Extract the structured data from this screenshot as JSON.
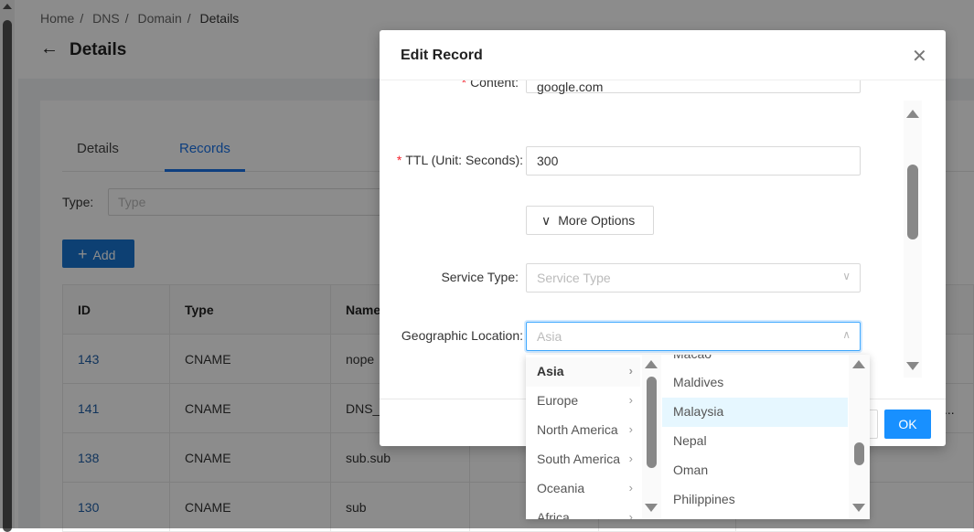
{
  "breadcrumb": [
    "Home",
    "DNS",
    "Domain",
    "Details"
  ],
  "page": {
    "title": "Details"
  },
  "tabs": [
    {
      "label": "Details"
    },
    {
      "label": "Records",
      "active": true
    }
  ],
  "filter": {
    "label": "Type:",
    "placeholder": "Type"
  },
  "add_label": "Add",
  "table": {
    "headers": [
      "ID",
      "Type",
      "Name"
    ],
    "rows": [
      {
        "id": "143",
        "type": "CNAME",
        "name": "nope"
      },
      {
        "id": "141",
        "type": "CNAME",
        "name": "DNS_("
      },
      {
        "id": "138",
        "type": "CNAME",
        "name": "sub.sub"
      },
      {
        "id": "130",
        "type": "CNAME",
        "name": "sub"
      }
    ],
    "overflow_text": "..."
  },
  "modal": {
    "title": "Edit Record",
    "content": {
      "label": "Content:",
      "value": "google.com"
    },
    "ttl": {
      "label": "TTL (Unit: Seconds):",
      "value": "300"
    },
    "more_options": "More Options",
    "service_type": {
      "label": "Service Type:",
      "placeholder": "Service Type"
    },
    "geo": {
      "label": "Geographic Location:",
      "placeholder": "Asia"
    },
    "ok_label": "OK"
  },
  "cascader": {
    "regions": [
      "Asia",
      "Europe",
      "North America",
      "South America",
      "Oceania",
      "Africa"
    ],
    "selected_region": "Asia",
    "countries": [
      "Macao",
      "Maldives",
      "Malaysia",
      "Nepal",
      "Oman",
      "Philippines"
    ],
    "hovered_country": "Malaysia"
  },
  "colors": {
    "primary": "#1890ff",
    "required": "#f5222d",
    "hover": "#e6f7ff"
  }
}
